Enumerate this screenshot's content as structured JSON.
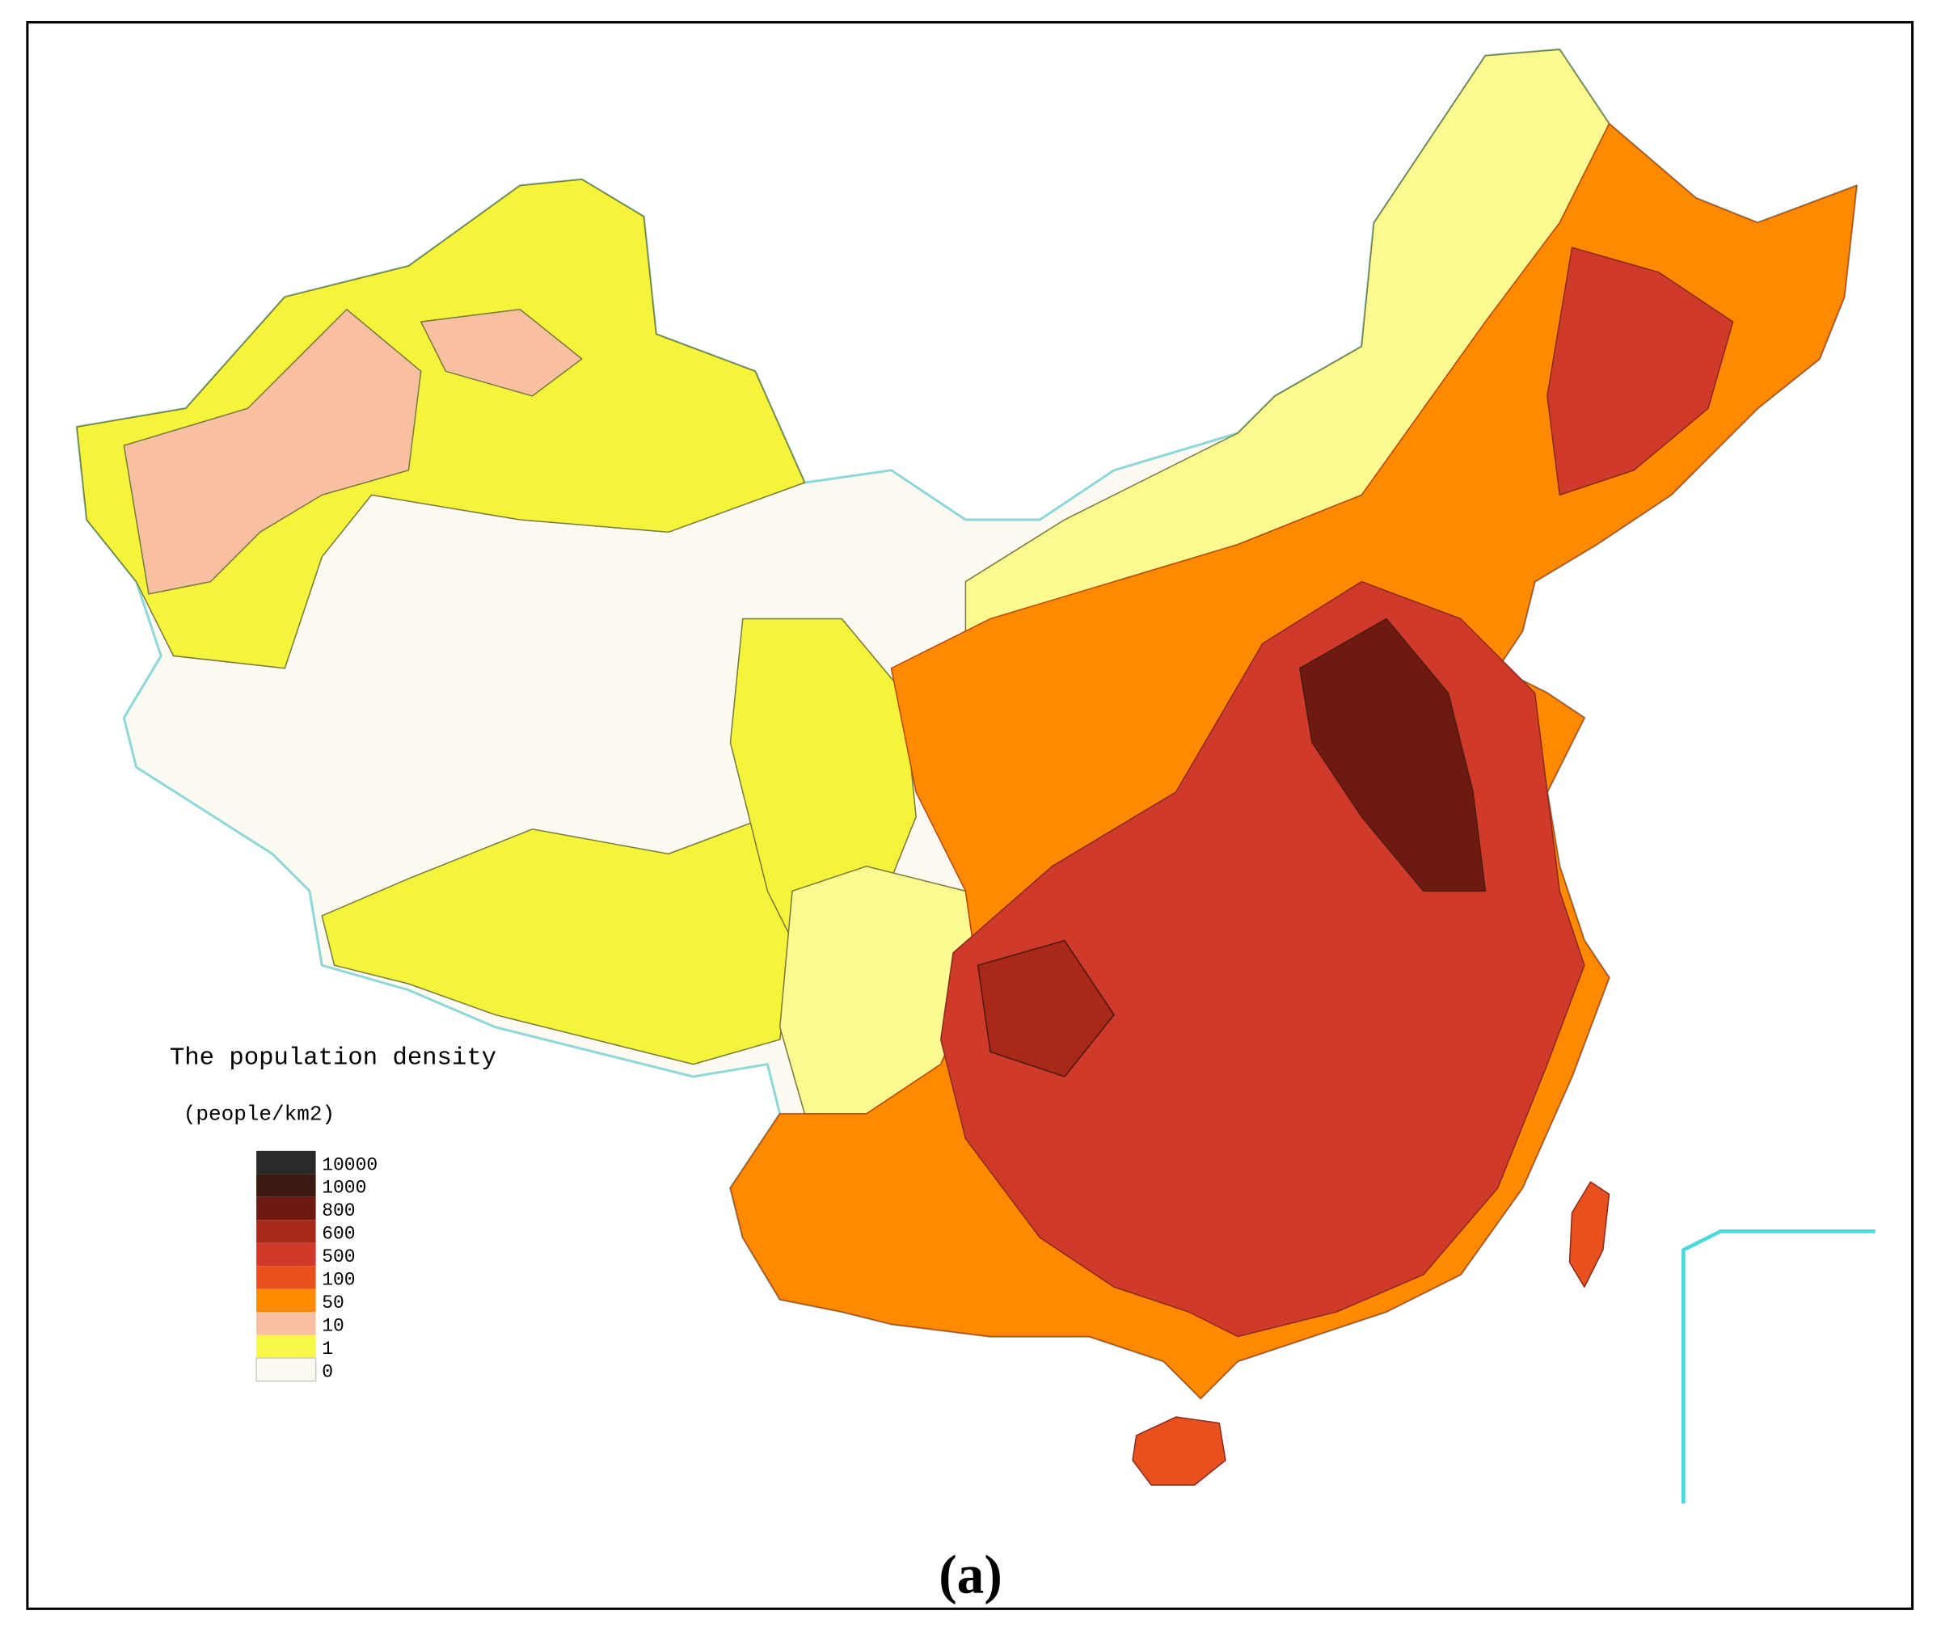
{
  "map": {
    "legend": {
      "title": "The population density",
      "unit": "(people/km2)",
      "items": [
        {
          "label": 10000,
          "color": "#2a2a2a"
        },
        {
          "label": 1000,
          "color": "#3a1a12"
        },
        {
          "label": 800,
          "color": "#6e1a10"
        },
        {
          "label": 600,
          "color": "#a8281a"
        },
        {
          "label": 500,
          "color": "#cf3a2a"
        },
        {
          "label": 100,
          "color": "#e8501e"
        },
        {
          "label": 50,
          "color": "#ff8a00"
        },
        {
          "label": 10,
          "color": "#f8c0a0"
        },
        {
          "label": 1,
          "color": "#f8f84a"
        },
        {
          "label": 0,
          "color": "#fdfaf2"
        }
      ]
    },
    "caption": "(a)"
  }
}
